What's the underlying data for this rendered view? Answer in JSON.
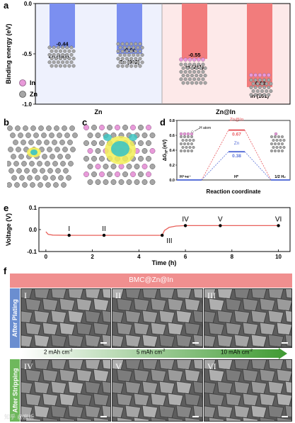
{
  "panel_labels": {
    "a": "a",
    "b": "b",
    "c": "c",
    "d": "d",
    "e": "e",
    "f": "f"
  },
  "chart_data": [
    {
      "id": "a",
      "type": "bar",
      "ylabel": "Binding energy (eV)",
      "ylim": [
        -1.0,
        0.0
      ],
      "yticks": [
        "0.0",
        "-0.5",
        "-1.0"
      ],
      "groups": [
        "Zn",
        "Zn@In"
      ],
      "categories": [
        "Zn (101)",
        "Zn (002)",
        "In (211)",
        "In (101)"
      ],
      "values": [
        -0.44,
        -0.5,
        -0.55,
        -0.83
      ],
      "value_labels": [
        "-0.44",
        "-0.50",
        "-0.55",
        "-0.83"
      ],
      "legend": [
        "In",
        "Zn"
      ],
      "colors": {
        "zn_bar": "#7b8ff0",
        "in_bar": "#f27c7c",
        "zn_bg": "#eef1fd",
        "in_bg": "#fde9e9",
        "in_atom": "#e89ad9",
        "zn_atom": "#a6a6a6"
      }
    },
    {
      "id": "d",
      "type": "line",
      "ylabel": "ΔG",
      "ylabel_sub": "H*",
      "ylabel_unit": "(eV)",
      "xlabel": "Reaction coordinate",
      "ylim": [
        0.0,
        0.8
      ],
      "yticks": [
        "0.0",
        "0.2",
        "0.4",
        "0.6",
        "0.8"
      ],
      "states": [
        "H⁺+e⁻",
        "H*",
        "1/2 H₂"
      ],
      "series": [
        {
          "name": "Zn@In",
          "values": [
            0,
            0.67,
            0
          ],
          "value_label": "0.67",
          "color": "#e8585e"
        },
        {
          "name": "Zn",
          "values": [
            0,
            0.38,
            0
          ],
          "value_label": "0.38",
          "color": "#5b72d8"
        }
      ],
      "annotation": "H atom"
    },
    {
      "id": "e",
      "type": "line",
      "xlabel": "Time (h)",
      "ylabel": "Voltage (V)",
      "xlim": [
        -0.3,
        10.5
      ],
      "ylim": [
        -0.1,
        0.1
      ],
      "xticks": [
        "0",
        "2",
        "4",
        "6",
        "8",
        "10"
      ],
      "yticks": [
        "0.1",
        "0.0",
        "-0.1"
      ],
      "series": [
        {
          "color": "#e8605a",
          "segments": [
            {
              "x": [
                0,
                0.1,
                0.3,
                1,
                2,
                3,
                4,
                5
              ],
              "y": [
                -0.01,
                -0.022,
                -0.025,
                -0.026,
                -0.026,
                -0.026,
                -0.026,
                -0.026
              ]
            },
            {
              "x": [
                5,
                5.1,
                5.3,
                5.6,
                6,
                8,
                10
              ],
              "y": [
                -0.026,
                -0.004,
                0.01,
                0.016,
                0.018,
                0.018,
                0.018
              ]
            }
          ]
        }
      ],
      "markers": [
        {
          "x": 1,
          "y": -0.026,
          "label": "I"
        },
        {
          "x": 2.5,
          "y": -0.026,
          "label": "II"
        },
        {
          "x": 5,
          "y": -0.026,
          "label": "III"
        },
        {
          "x": 6,
          "y": 0.018,
          "label": "IV"
        },
        {
          "x": 7.5,
          "y": 0.018,
          "label": "V"
        },
        {
          "x": 10,
          "y": 0.018,
          "label": "VI"
        }
      ]
    }
  ],
  "panel_f": {
    "banner": "BMC@Zn@In",
    "side_top": "After Plating",
    "side_bottom": "After Stripping",
    "current_labels": [
      {
        "value": "2 mAh cm",
        "exp": "-2"
      },
      {
        "value": "5 mAh cm",
        "exp": "-2"
      },
      {
        "value": "10 mAh cm",
        "exp": "-2"
      }
    ],
    "tiles_top": [
      "I",
      "II",
      "III"
    ],
    "tiles_bottom": [
      "IV",
      "V",
      "VI"
    ],
    "watermark": "知乎 @宸析"
  }
}
